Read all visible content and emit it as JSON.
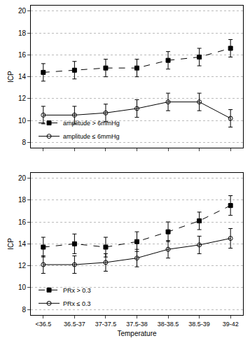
{
  "chart_data": [
    {
      "type": "line",
      "y_label": "ICP",
      "categories": [
        "<36.5",
        "36.5-37",
        "37-37.5",
        "37.5-38",
        "38-38.5",
        "38.5-39",
        "39-42"
      ],
      "ylim": [
        7.5,
        20.5
      ],
      "yticks": [
        8,
        10,
        12,
        14,
        16,
        18,
        20
      ],
      "grid": true,
      "legend": "lower left",
      "tick_labels": "y",
      "series": [
        {
          "name": "amplitude > 6mmHg",
          "color": "#000000",
          "marker": "square",
          "line_style": "dash",
          "values": [
            14.4,
            14.6,
            14.8,
            14.8,
            15.5,
            15.8,
            16.6
          ],
          "error": [
            0.8,
            0.8,
            0.8,
            0.8,
            0.8,
            0.8,
            0.8
          ]
        },
        {
          "name": "amplitude ≤ 6mmHg",
          "color": "#000000",
          "marker": "circle-open",
          "line_style": "solid",
          "values": [
            10.5,
            10.5,
            10.7,
            11.1,
            11.7,
            11.7,
            10.2
          ],
          "error": [
            0.8,
            0.8,
            0.8,
            0.8,
            0.8,
            0.8,
            0.8
          ]
        }
      ]
    },
    {
      "type": "line",
      "x_label": "Temperature",
      "y_label": "ICP",
      "categories": [
        "<36.5",
        "36.5-37",
        "37-37.5",
        "37.5-38",
        "38-38.5",
        "38.5-39",
        "39-42"
      ],
      "ylim": [
        7.5,
        20.5
      ],
      "yticks": [
        8,
        10,
        12,
        14,
        16,
        18,
        20
      ],
      "grid": true,
      "legend": "lower left",
      "series": [
        {
          "name": "PRx > 0.3",
          "color": "#000000",
          "marker": "square",
          "line_style": "dash",
          "values": [
            13.7,
            14.0,
            13.7,
            14.2,
            15.1,
            16.1,
            17.5
          ],
          "error": [
            0.9,
            0.9,
            0.9,
            0.9,
            0.9,
            0.8,
            0.9
          ]
        },
        {
          "name": "PRx ≤ 0.3",
          "color": "#000000",
          "marker": "circle-open",
          "line_style": "solid",
          "values": [
            12.1,
            12.1,
            12.3,
            12.7,
            13.5,
            13.9,
            14.5
          ],
          "error": [
            0.8,
            0.8,
            0.8,
            0.8,
            0.8,
            0.8,
            0.9
          ]
        }
      ]
    }
  ]
}
